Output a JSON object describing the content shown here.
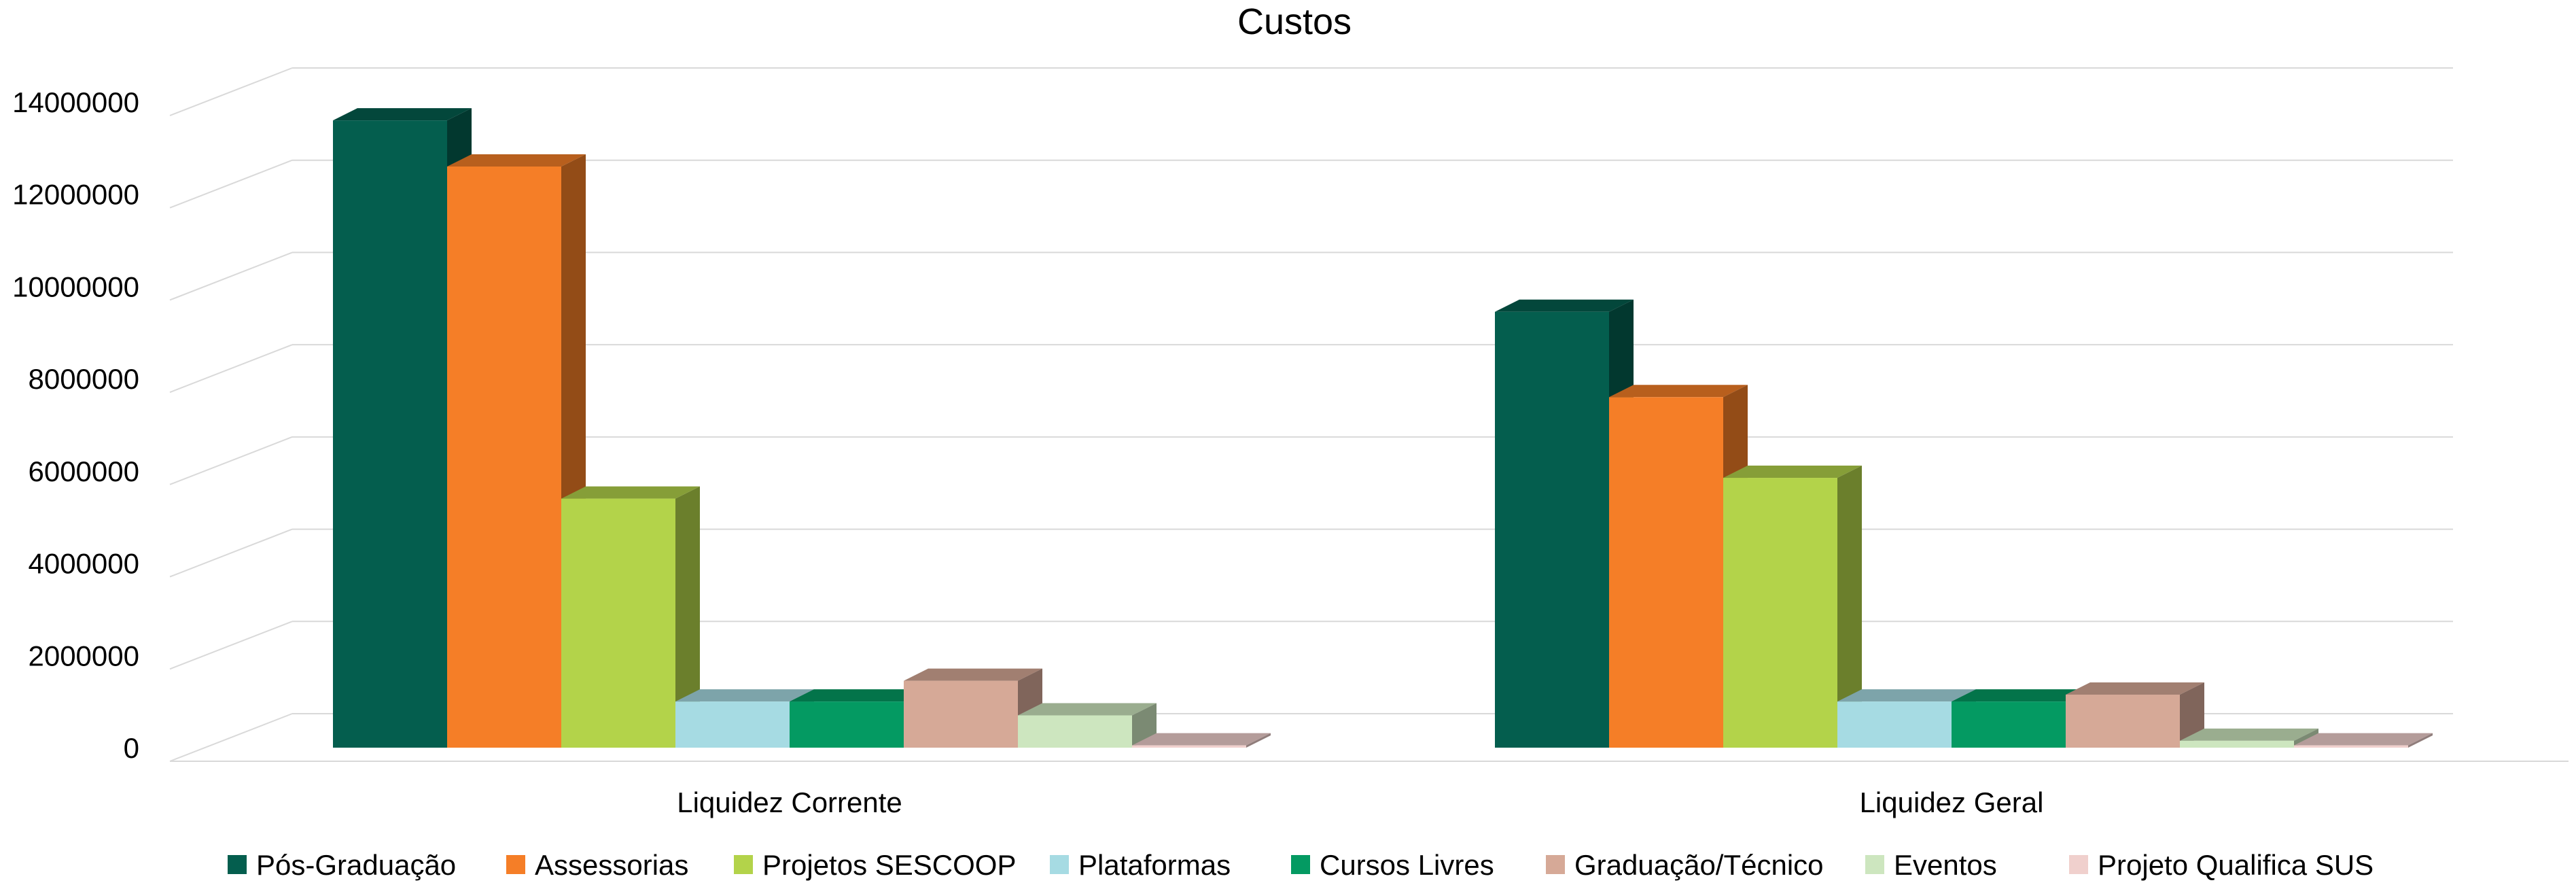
{
  "chart_data": {
    "type": "bar",
    "title": "Custos",
    "xlabel": "",
    "ylabel": "",
    "ylim": [
      0,
      14000000
    ],
    "yticks": [
      "0",
      "2000000",
      "4000000",
      "6000000",
      "8000000",
      "10000000",
      "12000000",
      "14000000"
    ],
    "categories": [
      "Liquidez Corrente",
      "Liquidez Geral"
    ],
    "series": [
      {
        "name": "Pós-Graduação",
        "color": "#045e4e",
        "values": [
          13600000,
          9450000
        ]
      },
      {
        "name": "Assessorias",
        "color": "#f57e27",
        "values": [
          12600000,
          7600000
        ]
      },
      {
        "name": "Projetos SESCOOP",
        "color": "#b3d34a",
        "values": [
          5400000,
          5850000
        ]
      },
      {
        "name": "Plataformas",
        "color": "#a6dbe3",
        "values": [
          1000000,
          1000000
        ]
      },
      {
        "name": "Cursos  Livres",
        "color": "#049a62",
        "values": [
          1000000,
          1000000
        ]
      },
      {
        "name": "Graduação/Técnico",
        "color": "#d6a997",
        "values": [
          1450000,
          1150000
        ]
      },
      {
        "name": "Eventos",
        "color": "#cde6bf",
        "values": [
          700000,
          150000
        ]
      },
      {
        "name": "Projeto Qualifica SUS",
        "color": "#f0d0cd",
        "values": [
          50000,
          50000
        ]
      }
    ],
    "grid": true,
    "legend_position": "bottom"
  }
}
